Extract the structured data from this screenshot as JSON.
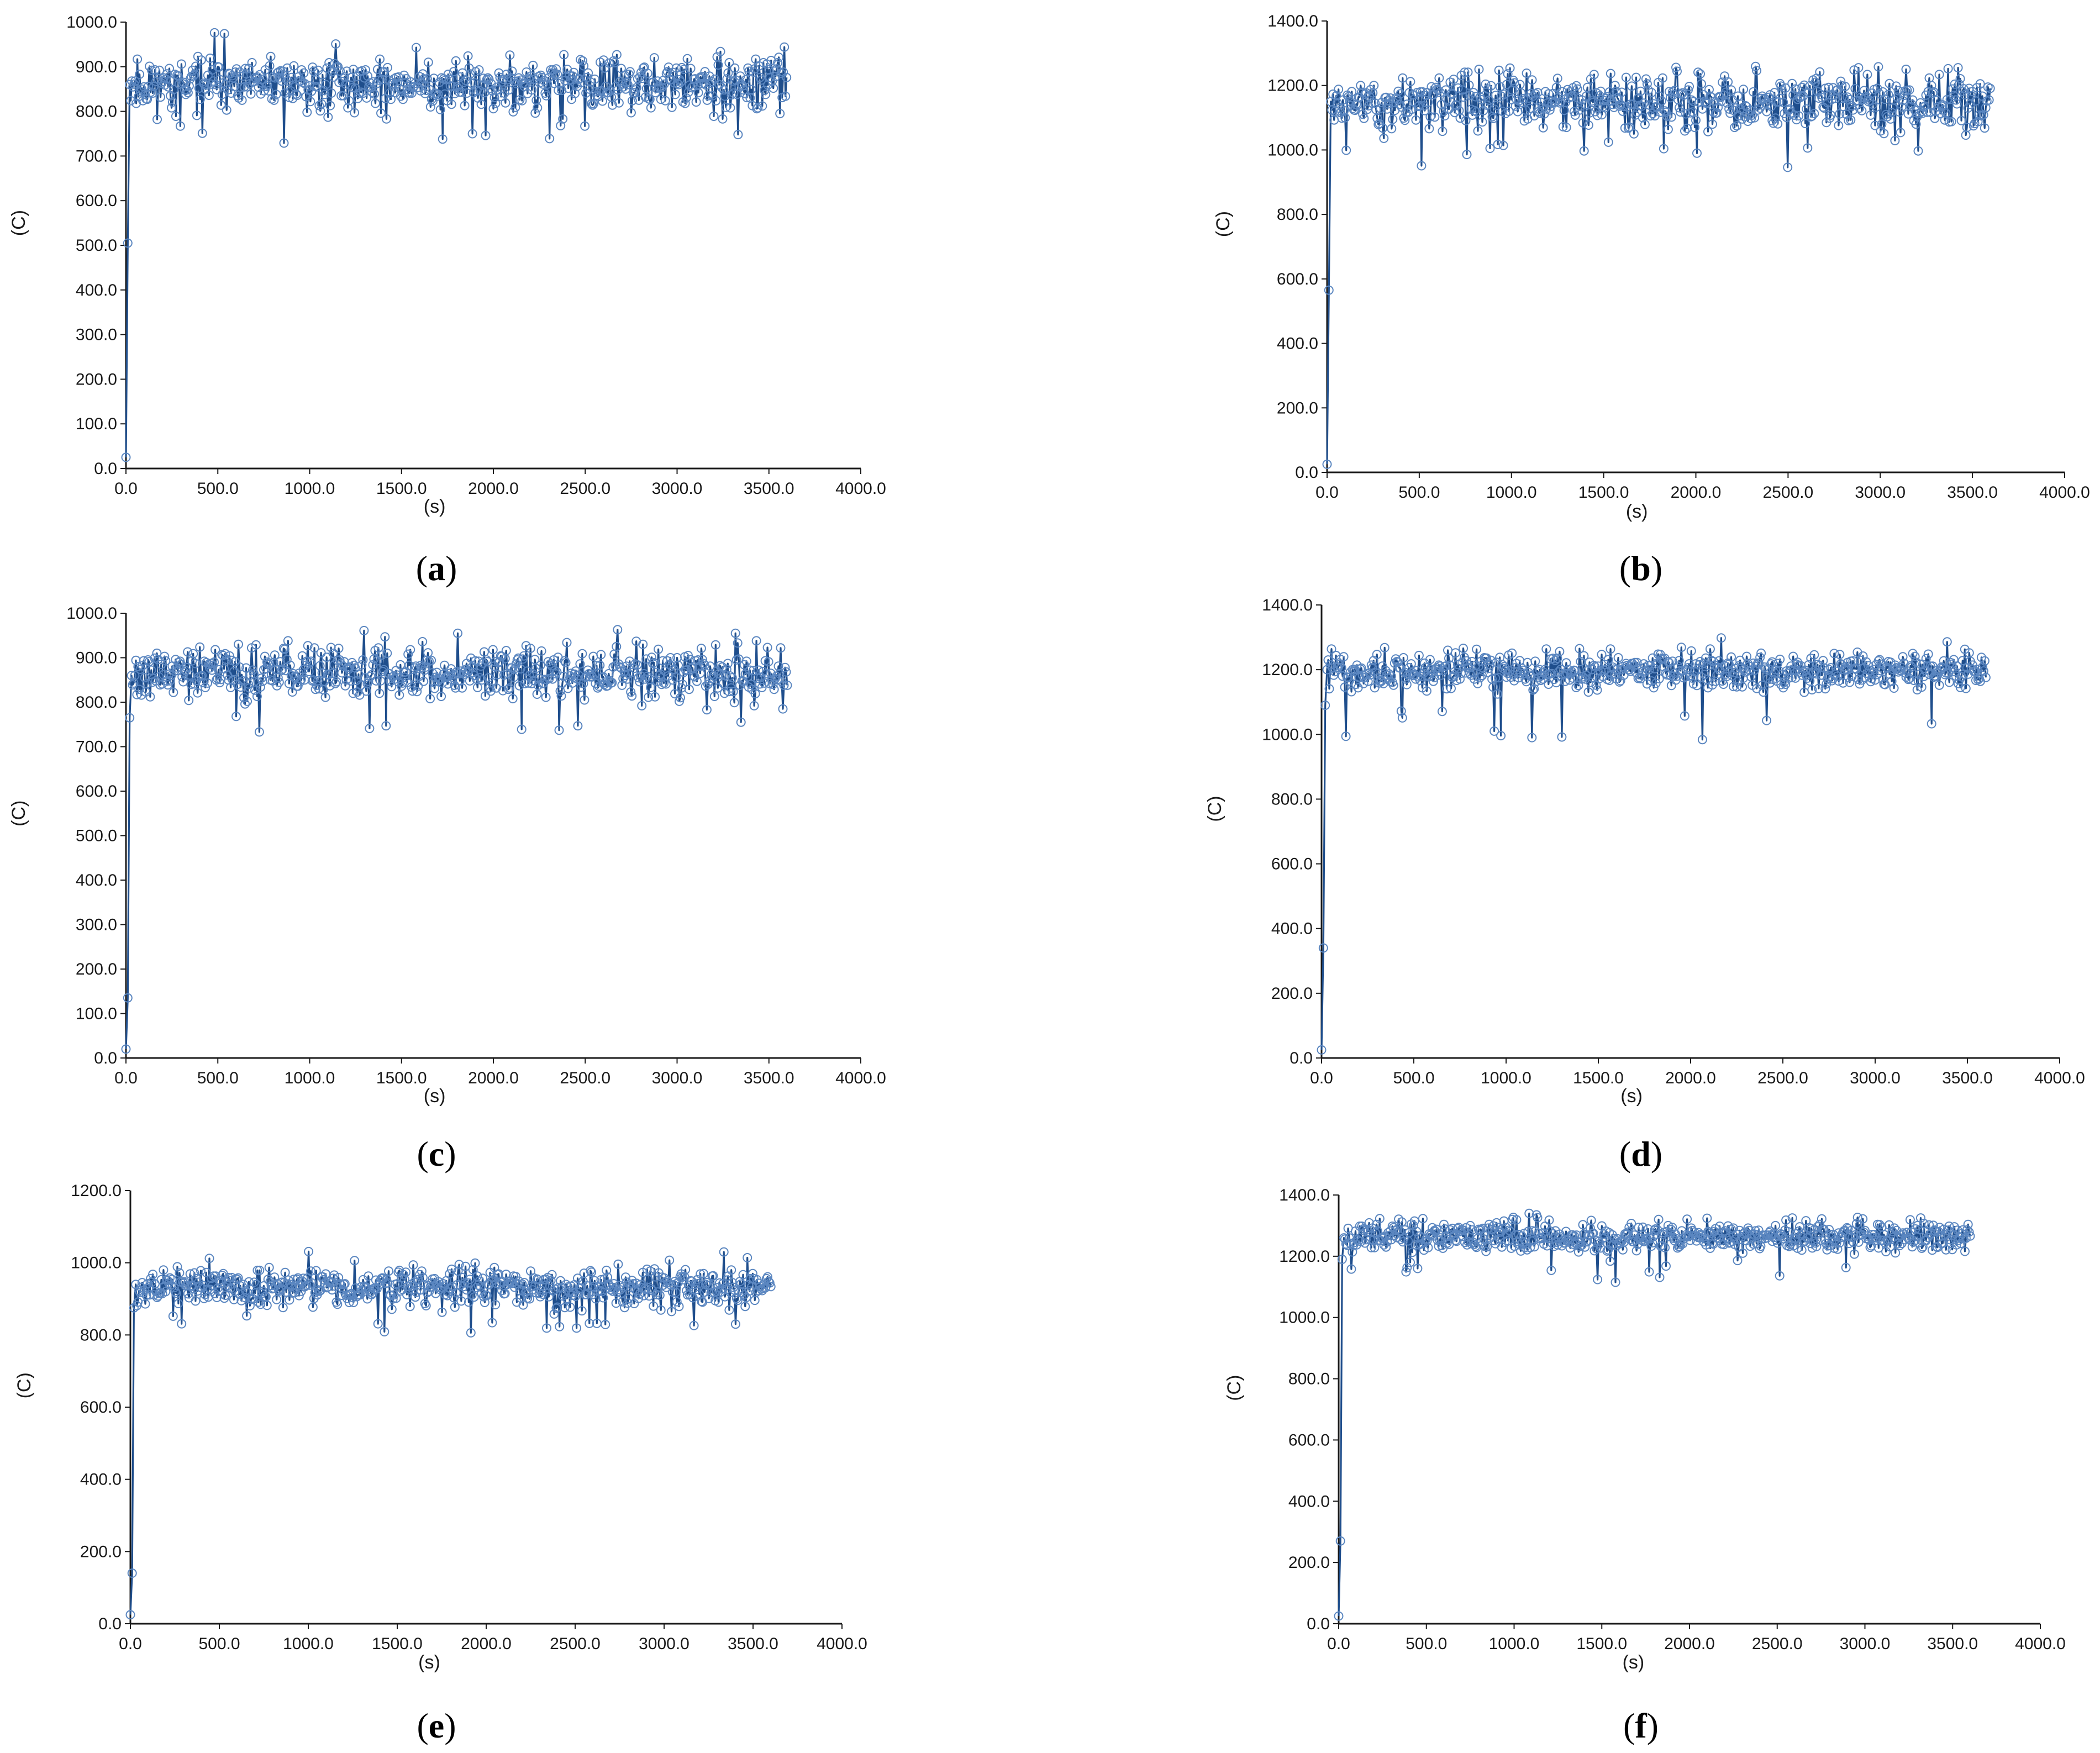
{
  "colors": {
    "series": "#1f4e8c",
    "marker_stroke": "#5a86c0",
    "axis": "#1a1a1a"
  },
  "chart_data": [
    {
      "type": "line",
      "panel": "a",
      "xlabel": "(s)",
      "ylabel": "(C)",
      "xlim": [
        0,
        4000
      ],
      "ylim": [
        0,
        1000
      ],
      "xticks": [
        "0.0",
        "500.0",
        "1000.0",
        "1500.0",
        "2000.0",
        "2500.0",
        "3000.0",
        "3500.0",
        "4000.0"
      ],
      "yticks": [
        "0.0",
        "100.0",
        "200.0",
        "300.0",
        "400.0",
        "500.0",
        "600.0",
        "700.0",
        "800.0",
        "900.0",
        "1000.0"
      ],
      "startup": [
        [
          0,
          25
        ],
        [
          10,
          505
        ],
        [
          20,
          860
        ]
      ],
      "noise": {
        "x_start": 20,
        "x_end": 3600,
        "step": 6,
        "mean": 860,
        "amp": 42,
        "low": 720,
        "high": 985,
        "seed": 11
      },
      "grid": false,
      "legend": "none"
    },
    {
      "type": "line",
      "panel": "b",
      "xlabel": "(s)",
      "ylabel": "(C)",
      "xlim": [
        0,
        4000
      ],
      "ylim": [
        0,
        1400
      ],
      "xticks": [
        "0.0",
        "500.0",
        "1000.0",
        "1500.0",
        "2000.0",
        "2500.0",
        "3000.0",
        "3500.0",
        "4000.0"
      ],
      "yticks": [
        "0.0",
        "200.0",
        "400.0",
        "600.0",
        "800.0",
        "1000.0",
        "1200.0",
        "1400.0"
      ],
      "startup": [
        [
          0,
          25
        ],
        [
          10,
          565
        ],
        [
          20,
          1150
        ]
      ],
      "noise": {
        "x_start": 20,
        "x_end": 3600,
        "step": 6,
        "mean": 1150,
        "amp": 60,
        "low": 940,
        "high": 1265,
        "seed": 23
      },
      "grid": false,
      "legend": "none"
    },
    {
      "type": "line",
      "panel": "c",
      "xlabel": "(s)",
      "ylabel": "(C)",
      "xlim": [
        0,
        4000
      ],
      "ylim": [
        0,
        1000
      ],
      "xticks": [
        "0.0",
        "500.0",
        "1000.0",
        "1500.0",
        "2000.0",
        "2500.0",
        "3000.0",
        "3500.0",
        "4000.0"
      ],
      "yticks": [
        "0.0",
        "100.0",
        "200.0",
        "300.0",
        "400.0",
        "500.0",
        "600.0",
        "700.0",
        "800.0",
        "900.0",
        "1000.0"
      ],
      "startup": [
        [
          0,
          20
        ],
        [
          10,
          135
        ],
        [
          20,
          765
        ],
        [
          30,
          860
        ]
      ],
      "noise": {
        "x_start": 30,
        "x_end": 3600,
        "step": 6,
        "mean": 865,
        "amp": 42,
        "low": 720,
        "high": 970,
        "seed": 37
      },
      "grid": false,
      "legend": "none"
    },
    {
      "type": "line",
      "panel": "d",
      "xlabel": "(s)",
      "ylabel": "(C)",
      "xlim": [
        0,
        4000
      ],
      "ylim": [
        0,
        1400
      ],
      "xticks": [
        "0.0",
        "500.0",
        "1000.0",
        "1500.0",
        "2000.0",
        "2500.0",
        "3000.0",
        "3500.0",
        "4000.0"
      ],
      "yticks": [
        "0.0",
        "200.0",
        "400.0",
        "600.0",
        "800.0",
        "1000.0",
        "1200.0",
        "1400.0"
      ],
      "startup": [
        [
          0,
          25
        ],
        [
          10,
          340
        ],
        [
          20,
          1090
        ],
        [
          30,
          1200
        ]
      ],
      "noise": {
        "x_start": 30,
        "x_end": 3600,
        "step": 6,
        "mean": 1195,
        "amp": 40,
        "low": 970,
        "high": 1300,
        "seed": 41
      },
      "grid": false,
      "legend": "none"
    },
    {
      "type": "line",
      "panel": "e",
      "xlabel": "(s)",
      "ylabel": "(C)",
      "xlim": [
        0,
        4000
      ],
      "ylim": [
        0,
        1200
      ],
      "xticks": [
        "0.0",
        "500.0",
        "1000.0",
        "1500.0",
        "2000.0",
        "2500.0",
        "3000.0",
        "3500.0",
        "4000.0"
      ],
      "yticks": [
        "0.0",
        "200.0",
        "400.0",
        "600.0",
        "800.0",
        "1000.0",
        "1200.0"
      ],
      "startup": [
        [
          0,
          25
        ],
        [
          10,
          140
        ],
        [
          20,
          875
        ],
        [
          30,
          940
        ]
      ],
      "noise": {
        "x_start": 30,
        "x_end": 3600,
        "step": 6,
        "mean": 935,
        "amp": 38,
        "low": 805,
        "high": 1035,
        "seed": 53
      },
      "grid": false,
      "legend": "none"
    },
    {
      "type": "line",
      "panel": "f",
      "xlabel": "(s)",
      "ylabel": "(C)",
      "xlim": [
        0,
        4000
      ],
      "ylim": [
        0,
        1400
      ],
      "xticks": [
        "0.0",
        "500.0",
        "1000.0",
        "1500.0",
        "2000.0",
        "2500.0",
        "3000.0",
        "3500.0",
        "4000.0"
      ],
      "yticks": [
        "0.0",
        "200.0",
        "400.0",
        "600.0",
        "800.0",
        "1000.0",
        "1200.0",
        "1400.0"
      ],
      "startup": [
        [
          0,
          25
        ],
        [
          10,
          270
        ],
        [
          20,
          1190
        ],
        [
          30,
          1260
        ]
      ],
      "noise": {
        "x_start": 30,
        "x_end": 3600,
        "step": 6,
        "mean": 1265,
        "amp": 35,
        "low": 1110,
        "high": 1340,
        "seed": 67
      },
      "grid": false,
      "legend": "none"
    }
  ]
}
